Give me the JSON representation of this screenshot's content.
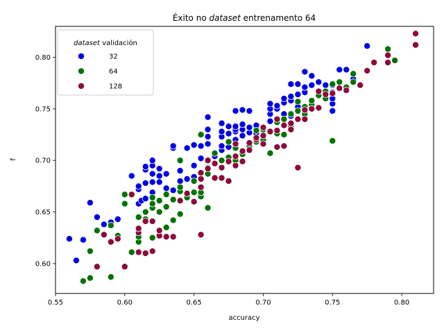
{
  "chart_data": {
    "type": "scatter",
    "title": {
      "prefix": "Éxito no ",
      "italic": "dataset",
      "suffix": " entrenamento 64"
    },
    "xlabel": "accuracy",
    "ylabel": "f",
    "xlim": [
      0.55,
      0.823
    ],
    "ylim": [
      0.571,
      0.83
    ],
    "xticks": [
      "0.55",
      "0.60",
      "0.65",
      "0.70",
      "0.75",
      "0.80"
    ],
    "xtick_values": [
      0.55,
      0.6,
      0.65,
      0.7,
      0.75,
      0.8
    ],
    "yticks": [
      "0.60",
      "0.65",
      "0.70",
      "0.75",
      "0.80"
    ],
    "ytick_values": [
      0.6,
      0.65,
      0.7,
      0.75,
      0.8
    ],
    "grid": false,
    "legend": {
      "title_italic": "dataset",
      "title_rest": " validación",
      "position": "top-left"
    },
    "series": [
      {
        "name": "32",
        "color": "#0000e6",
        "points": [
          [
            0.56,
            0.624
          ],
          [
            0.565,
            0.603
          ],
          [
            0.57,
            0.623
          ],
          [
            0.575,
            0.659
          ],
          [
            0.58,
            0.645
          ],
          [
            0.585,
            0.638
          ],
          [
            0.59,
            0.64
          ],
          [
            0.595,
            0.643
          ],
          [
            0.605,
            0.685
          ],
          [
            0.61,
            0.658
          ],
          [
            0.61,
            0.672
          ],
          [
            0.61,
            0.675
          ],
          [
            0.612,
            0.661
          ],
          [
            0.615,
            0.663
          ],
          [
            0.615,
            0.678
          ],
          [
            0.615,
            0.691
          ],
          [
            0.615,
            0.694
          ],
          [
            0.62,
            0.669
          ],
          [
            0.62,
            0.679
          ],
          [
            0.62,
            0.687
          ],
          [
            0.62,
            0.695
          ],
          [
            0.62,
            0.7
          ],
          [
            0.625,
            0.679
          ],
          [
            0.625,
            0.685
          ],
          [
            0.625,
            0.692
          ],
          [
            0.63,
            0.668
          ],
          [
            0.63,
            0.673
          ],
          [
            0.63,
            0.687
          ],
          [
            0.635,
            0.671
          ],
          [
            0.635,
            0.712
          ],
          [
            0.635,
            0.714
          ],
          [
            0.64,
            0.68
          ],
          [
            0.64,
            0.69
          ],
          [
            0.645,
            0.682
          ],
          [
            0.645,
            0.712
          ],
          [
            0.65,
            0.684
          ],
          [
            0.65,
            0.695
          ],
          [
            0.65,
            0.715
          ],
          [
            0.655,
            0.702
          ],
          [
            0.655,
            0.714
          ],
          [
            0.66,
            0.693
          ],
          [
            0.66,
            0.716
          ],
          [
            0.66,
            0.723
          ],
          [
            0.66,
            0.73
          ],
          [
            0.66,
            0.742
          ],
          [
            0.665,
            0.704
          ],
          [
            0.67,
            0.71
          ],
          [
            0.67,
            0.714
          ],
          [
            0.67,
            0.723
          ],
          [
            0.67,
            0.728
          ],
          [
            0.67,
            0.736
          ],
          [
            0.675,
            0.713
          ],
          [
            0.675,
            0.718
          ],
          [
            0.675,
            0.726
          ],
          [
            0.675,
            0.733
          ],
          [
            0.68,
            0.72
          ],
          [
            0.68,
            0.728
          ],
          [
            0.68,
            0.73
          ],
          [
            0.68,
            0.733
          ],
          [
            0.68,
            0.748
          ],
          [
            0.685,
            0.724
          ],
          [
            0.685,
            0.73
          ],
          [
            0.685,
            0.735
          ],
          [
            0.685,
            0.749
          ],
          [
            0.69,
            0.727
          ],
          [
            0.69,
            0.732
          ],
          [
            0.69,
            0.748
          ],
          [
            0.695,
            0.726
          ],
          [
            0.695,
            0.731
          ],
          [
            0.695,
            0.734
          ],
          [
            0.7,
            0.717
          ],
          [
            0.7,
            0.729
          ],
          [
            0.705,
            0.738
          ],
          [
            0.705,
            0.745
          ],
          [
            0.705,
            0.75
          ],
          [
            0.705,
            0.755
          ],
          [
            0.71,
            0.739
          ],
          [
            0.71,
            0.75
          ],
          [
            0.71,
            0.753
          ],
          [
            0.715,
            0.745
          ],
          [
            0.715,
            0.756
          ],
          [
            0.715,
            0.76
          ],
          [
            0.72,
            0.743
          ],
          [
            0.72,
            0.758
          ],
          [
            0.72,
            0.762
          ],
          [
            0.72,
            0.774
          ],
          [
            0.725,
            0.749
          ],
          [
            0.725,
            0.752
          ],
          [
            0.725,
            0.764
          ],
          [
            0.725,
            0.774
          ],
          [
            0.73,
            0.766
          ],
          [
            0.73,
            0.771
          ],
          [
            0.73,
            0.786
          ],
          [
            0.735,
            0.773
          ],
          [
            0.735,
            0.782
          ],
          [
            0.74,
            0.764
          ],
          [
            0.74,
            0.776
          ],
          [
            0.745,
            0.773
          ],
          [
            0.75,
            0.748
          ],
          [
            0.75,
            0.755
          ],
          [
            0.75,
            0.76
          ],
          [
            0.75,
            0.773
          ],
          [
            0.75,
            0.766
          ],
          [
            0.755,
            0.788
          ],
          [
            0.76,
            0.771
          ],
          [
            0.76,
            0.788
          ],
          [
            0.765,
            0.779
          ],
          [
            0.775,
            0.811
          ]
        ]
      },
      {
        "name": "64",
        "color": "#007300",
        "points": [
          [
            0.57,
            0.583
          ],
          [
            0.575,
            0.586
          ],
          [
            0.575,
            0.612
          ],
          [
            0.58,
            0.632
          ],
          [
            0.59,
            0.637
          ],
          [
            0.59,
            0.587
          ],
          [
            0.595,
            0.627
          ],
          [
            0.6,
            0.658
          ],
          [
            0.6,
            0.667
          ],
          [
            0.605,
            0.611
          ],
          [
            0.61,
            0.621
          ],
          [
            0.61,
            0.626
          ],
          [
            0.61,
            0.645
          ],
          [
            0.615,
            0.643
          ],
          [
            0.615,
            0.65
          ],
          [
            0.62,
            0.625
          ],
          [
            0.62,
            0.654
          ],
          [
            0.62,
            0.658
          ],
          [
            0.62,
            0.664
          ],
          [
            0.625,
            0.65
          ],
          [
            0.625,
            0.661
          ],
          [
            0.63,
            0.635
          ],
          [
            0.63,
            0.655
          ],
          [
            0.63,
            0.667
          ],
          [
            0.635,
            0.642
          ],
          [
            0.635,
            0.662
          ],
          [
            0.64,
            0.648
          ],
          [
            0.64,
            0.67
          ],
          [
            0.64,
            0.674
          ],
          [
            0.64,
            0.7
          ],
          [
            0.645,
            0.664
          ],
          [
            0.65,
            0.669
          ],
          [
            0.65,
            0.68
          ],
          [
            0.655,
            0.665
          ],
          [
            0.655,
            0.669
          ],
          [
            0.655,
            0.725
          ],
          [
            0.66,
            0.654
          ],
          [
            0.66,
            0.687
          ],
          [
            0.66,
            0.693
          ],
          [
            0.665,
            0.707
          ],
          [
            0.67,
            0.7
          ],
          [
            0.675,
            0.703
          ],
          [
            0.675,
            0.718
          ],
          [
            0.68,
            0.7
          ],
          [
            0.68,
            0.712
          ],
          [
            0.685,
            0.706
          ],
          [
            0.69,
            0.714
          ],
          [
            0.695,
            0.718
          ],
          [
            0.695,
            0.729
          ],
          [
            0.7,
            0.72
          ],
          [
            0.7,
            0.73
          ],
          [
            0.705,
            0.707
          ],
          [
            0.705,
            0.728
          ],
          [
            0.71,
            0.726
          ],
          [
            0.71,
            0.737
          ],
          [
            0.715,
            0.725
          ],
          [
            0.715,
            0.74
          ],
          [
            0.72,
            0.733
          ],
          [
            0.72,
            0.745
          ],
          [
            0.725,
            0.748
          ],
          [
            0.725,
            0.757
          ],
          [
            0.73,
            0.745
          ],
          [
            0.73,
            0.752
          ],
          [
            0.735,
            0.754
          ],
          [
            0.735,
            0.758
          ],
          [
            0.74,
            0.763
          ],
          [
            0.745,
            0.76
          ],
          [
            0.745,
            0.767
          ],
          [
            0.75,
            0.719
          ],
          [
            0.75,
            0.774
          ],
          [
            0.755,
            0.776
          ],
          [
            0.76,
            0.771
          ],
          [
            0.765,
            0.776
          ],
          [
            0.765,
            0.784
          ],
          [
            0.79,
            0.808
          ],
          [
            0.795,
            0.797
          ]
        ]
      },
      {
        "name": "128",
        "color": "#8c0a3c",
        "points": [
          [
            0.58,
            0.597
          ],
          [
            0.585,
            0.628
          ],
          [
            0.59,
            0.621
          ],
          [
            0.595,
            0.624
          ],
          [
            0.6,
            0.597
          ],
          [
            0.605,
            0.667
          ],
          [
            0.61,
            0.611
          ],
          [
            0.61,
            0.63
          ],
          [
            0.61,
            0.634
          ],
          [
            0.615,
            0.61
          ],
          [
            0.615,
            0.641
          ],
          [
            0.62,
            0.612
          ],
          [
            0.62,
            0.641
          ],
          [
            0.625,
            0.627
          ],
          [
            0.625,
            0.632
          ],
          [
            0.63,
            0.626
          ],
          [
            0.635,
            0.626
          ],
          [
            0.64,
            0.661
          ],
          [
            0.645,
            0.668
          ],
          [
            0.65,
            0.66
          ],
          [
            0.655,
            0.628
          ],
          [
            0.655,
            0.674
          ],
          [
            0.655,
            0.682
          ],
          [
            0.655,
            0.688
          ],
          [
            0.66,
            0.692
          ],
          [
            0.66,
            0.7
          ],
          [
            0.665,
            0.683
          ],
          [
            0.665,
            0.697
          ],
          [
            0.67,
            0.683
          ],
          [
            0.67,
            0.693
          ],
          [
            0.675,
            0.68
          ],
          [
            0.675,
            0.699
          ],
          [
            0.68,
            0.695
          ],
          [
            0.68,
            0.704
          ],
          [
            0.68,
            0.716
          ],
          [
            0.685,
            0.699
          ],
          [
            0.685,
            0.709
          ],
          [
            0.69,
            0.71
          ],
          [
            0.69,
            0.717
          ],
          [
            0.695,
            0.72
          ],
          [
            0.695,
            0.722
          ],
          [
            0.7,
            0.716
          ],
          [
            0.7,
            0.724
          ],
          [
            0.7,
            0.732
          ],
          [
            0.705,
            0.728
          ],
          [
            0.71,
            0.713
          ],
          [
            0.71,
            0.729
          ],
          [
            0.71,
            0.74
          ],
          [
            0.715,
            0.714
          ],
          [
            0.715,
            0.734
          ],
          [
            0.72,
            0.73
          ],
          [
            0.72,
            0.736
          ],
          [
            0.725,
            0.693
          ],
          [
            0.725,
            0.74
          ],
          [
            0.73,
            0.74
          ],
          [
            0.73,
            0.749
          ],
          [
            0.735,
            0.75
          ],
          [
            0.74,
            0.751
          ],
          [
            0.74,
            0.767
          ],
          [
            0.745,
            0.764
          ],
          [
            0.75,
            0.765
          ],
          [
            0.755,
            0.77
          ],
          [
            0.76,
            0.768
          ],
          [
            0.77,
            0.773
          ],
          [
            0.775,
            0.787
          ],
          [
            0.78,
            0.795
          ],
          [
            0.79,
            0.795
          ],
          [
            0.79,
            0.802
          ],
          [
            0.81,
            0.812
          ],
          [
            0.81,
            0.823
          ]
        ]
      }
    ]
  }
}
